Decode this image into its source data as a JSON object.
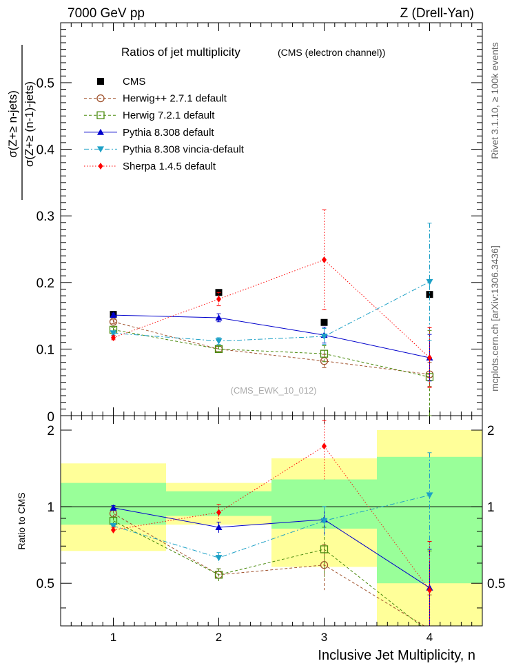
{
  "header": {
    "left": "7000 GeV pp",
    "right": "Z (Drell-Yan)"
  },
  "side_labels": {
    "rivet": "Rivet 3.1.10, ≥ 100k events",
    "source": "mcplots.cern.ch [arXiv:1306.3436]"
  },
  "chart_data": [
    {
      "type": "line",
      "title": "Ratios of jet multiplicity",
      "subtitle": "(CMS (electron channel))",
      "ylabel_numerator": "σ(Z+≥ n-jets)",
      "ylabel_denominator": "σ(Z+≥ (n-1)-jets)",
      "watermark": "(CMS_EWK_10_012)",
      "x": [
        1,
        2,
        3,
        4
      ],
      "xlim": [
        0.5,
        4.5
      ],
      "ylim": [
        0,
        0.59
      ],
      "yticks": [
        0.1,
        0.2,
        0.3,
        0.4,
        0.5
      ],
      "ytick_labels": [
        "0.1",
        "0.2",
        "0.3",
        "0.4",
        "0.5"
      ],
      "legend_placement": "top-left",
      "series": [
        {
          "name": "CMS",
          "color": "#000000",
          "marker": "filled-square",
          "line": "none",
          "values": [
            0.152,
            0.185,
            0.14,
            0.182
          ]
        },
        {
          "name": "Herwig++ 2.7.1 default",
          "color": "#a0522d",
          "marker": "open-circle",
          "line": "dashed",
          "values": [
            0.141,
            0.1,
            0.082,
            0.062
          ],
          "errors": [
            0.003,
            0.004,
            0.01,
            0.018
          ]
        },
        {
          "name": "Herwig 7.2.1 default",
          "color": "#4b8b0f",
          "marker": "open-square",
          "line": "dashed",
          "values": [
            0.129,
            0.1,
            0.093,
            0.058
          ],
          "errors": [
            0.003,
            0.004,
            0.012,
            0.07
          ]
        },
        {
          "name": "Pythia 8.308 default",
          "color": "#0000cc",
          "marker": "filled-triangle-up",
          "line": "solid",
          "values": [
            0.151,
            0.147,
            0.121,
            0.087
          ],
          "errors": [
            0.003,
            0.006,
            0.012,
            0.035
          ]
        },
        {
          "name": "Pythia 8.308 vincia-default",
          "color": "#1ca0c6",
          "marker": "filled-triangle-down",
          "line": "dash-dot",
          "values": [
            0.124,
            0.112,
            0.119,
            0.201
          ],
          "errors": [
            0.003,
            0.005,
            0.012,
            0.088
          ]
        },
        {
          "name": "Sherpa 1.4.5 default",
          "color": "#ff0000",
          "marker": "filled-diamond",
          "line": "dotted",
          "values": [
            0.117,
            0.175,
            0.234,
            0.087
          ],
          "errors": [
            0.003,
            0.01,
            0.075,
            0.045
          ]
        }
      ]
    },
    {
      "type": "line",
      "ylabel": "Ratio to CMS",
      "xlabel": "Inclusive Jet Multiplicity, n",
      "x": [
        1,
        2,
        3,
        4
      ],
      "xlim": [
        0.5,
        4.5
      ],
      "ylim": [
        0.34,
        2.28
      ],
      "yticks": [
        0.5,
        1,
        2
      ],
      "ytick_labels": [
        "0.5",
        "1",
        "2"
      ],
      "xtick_labels": [
        "1",
        "2",
        "3",
        "4"
      ],
      "reference_line": 1,
      "uncertainty_bands": {
        "inner_color": "#99ff99",
        "outer_color": "#ffff99",
        "bins": [
          {
            "lo": 0.5,
            "hi": 1.5,
            "inner": [
              0.85,
              1.24
            ],
            "outer": [
              0.67,
              1.48
            ]
          },
          {
            "lo": 1.5,
            "hi": 2.5,
            "inner": [
              0.92,
              1.15
            ],
            "outer": [
              0.85,
              1.24
            ]
          },
          {
            "lo": 2.5,
            "hi": 3.5,
            "inner": [
              0.82,
              1.28
            ],
            "outer": [
              0.58,
              1.55
            ]
          },
          {
            "lo": 3.5,
            "hi": 4.5,
            "inner": [
              0.5,
              1.57
            ],
            "outer": [
              0.34,
              2.0
            ]
          }
        ]
      },
      "series": [
        {
          "name": "Herwig++ 2.7.1 default",
          "values": [
            0.94,
            0.54,
            0.59,
            0.33
          ],
          "errors": [
            0.03,
            0.03,
            0.12,
            0.12
          ]
        },
        {
          "name": "Herwig 7.2.1 default",
          "values": [
            0.88,
            0.54,
            0.68,
            0.32
          ],
          "errors": [
            0.03,
            0.03,
            0.15,
            0.35
          ]
        },
        {
          "name": "Pythia 8.308 default",
          "values": [
            0.99,
            0.83,
            0.89,
            0.48
          ],
          "errors": [
            0.02,
            0.04,
            0.11,
            0.2
          ]
        },
        {
          "name": "Pythia 8.308 vincia-default",
          "values": [
            0.84,
            0.63,
            0.88,
            1.11
          ],
          "errors": [
            0.02,
            0.03,
            0.12,
            0.52
          ]
        },
        {
          "name": "Sherpa 1.4.5 default",
          "values": [
            0.81,
            0.95,
            1.73,
            0.47
          ],
          "errors": [
            0.02,
            0.07,
            0.45,
            0.26
          ]
        }
      ]
    }
  ]
}
